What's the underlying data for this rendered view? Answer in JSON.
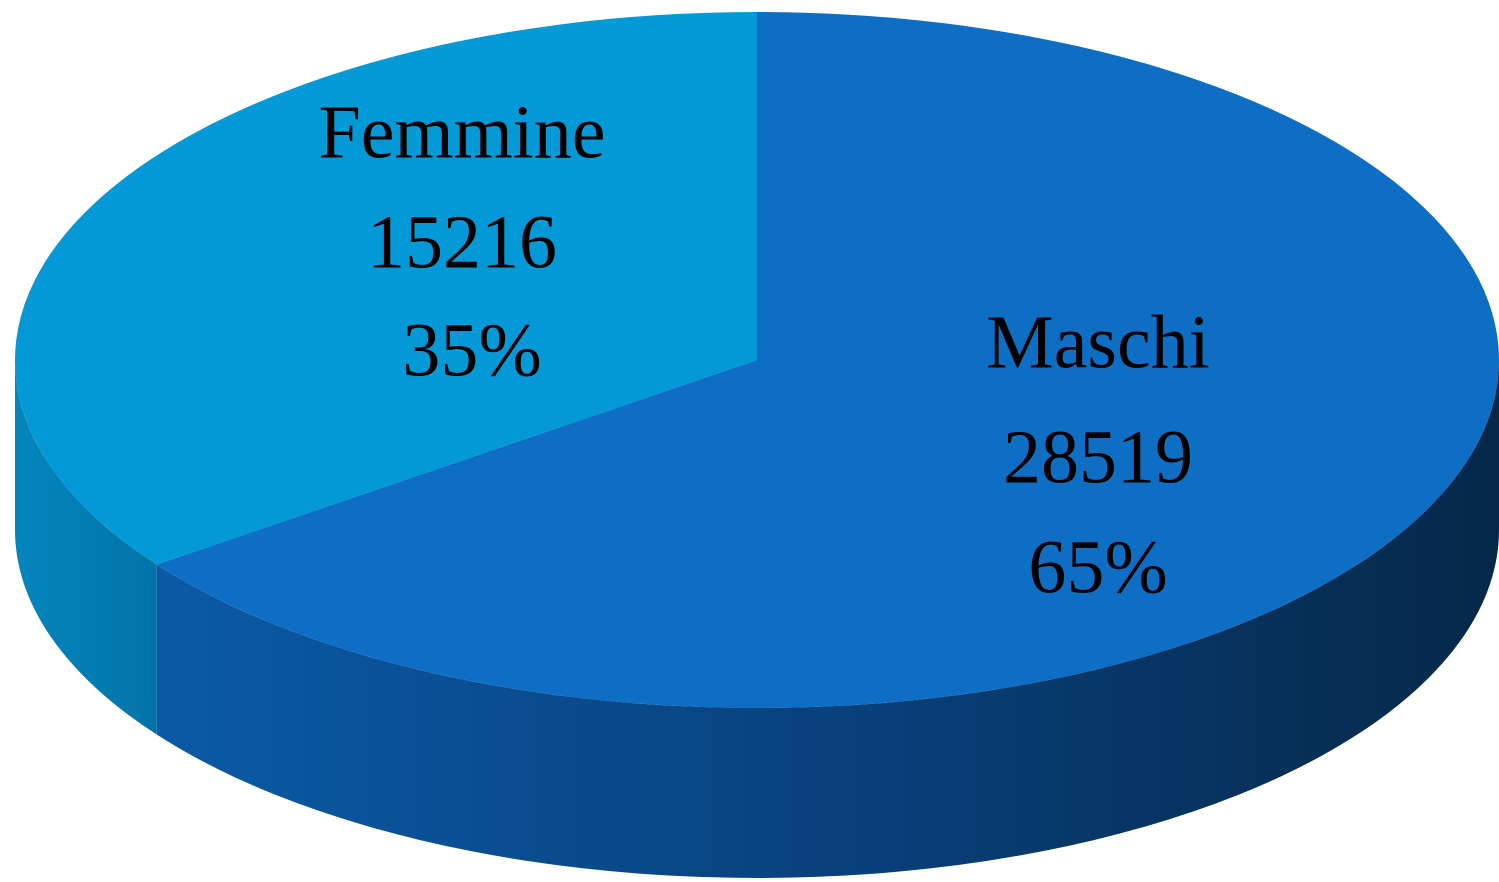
{
  "chart_data": {
    "type": "pie3d",
    "categories": [
      "Femmine",
      "Maschi"
    ],
    "counts": [
      15216,
      28519
    ],
    "values": [
      35,
      65
    ],
    "value_labels": [
      "35%",
      "65%"
    ],
    "colors": [
      "#0399d6",
      "#0e6ec4"
    ]
  }
}
